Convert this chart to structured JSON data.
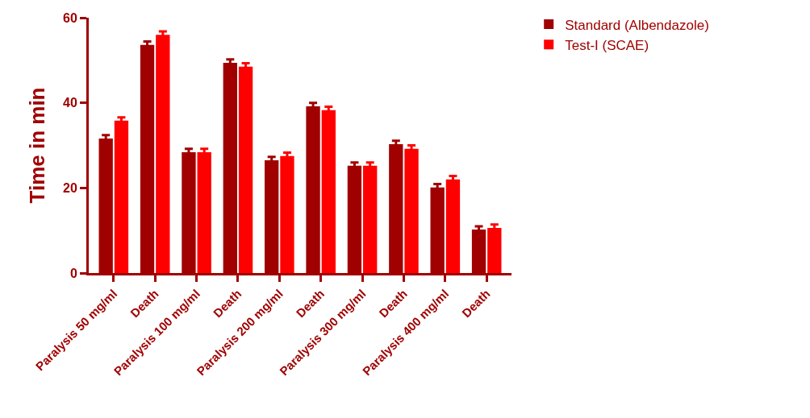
{
  "chart_data": {
    "type": "bar",
    "ylabel": "Time in min",
    "categories": [
      "Paralysis 50 mg/ml",
      "Death",
      "Paralysis 100 mg/ml",
      "Death",
      "Paralysis 200 mg/ml",
      "Death",
      "Paralysis 300 mg/ml",
      "Death",
      "Paralysis 400 mg/ml",
      "Death"
    ],
    "series": [
      {
        "name": "Standard (Albendazole)",
        "color": "#a00000",
        "values": [
          31.6,
          53.6,
          28.4,
          49.4,
          26.5,
          39.2,
          25.2,
          30.3,
          20.1,
          10.2
        ],
        "errors": [
          0.8,
          0.8,
          0.8,
          0.8,
          0.8,
          0.8,
          0.8,
          0.8,
          0.8,
          0.8
        ]
      },
      {
        "name": "Test-I (SCAE)",
        "color": "#ff0000",
        "values": [
          35.8,
          56.0,
          28.4,
          48.5,
          27.5,
          38.3,
          25.2,
          29.2,
          22.0,
          10.6
        ],
        "errors": [
          0.8,
          0.8,
          0.8,
          0.8,
          0.8,
          0.8,
          0.8,
          0.8,
          0.8,
          0.8
        ]
      }
    ],
    "ylim": [
      0,
      60
    ],
    "yticks": [
      0,
      20,
      40,
      60
    ],
    "legend": "top right"
  }
}
